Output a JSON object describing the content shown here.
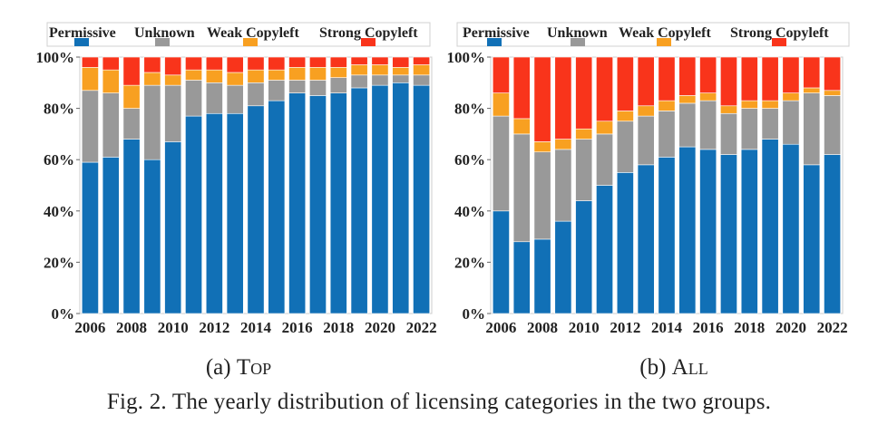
{
  "colors": {
    "Permissive": "#1170b6",
    "Unknown": "#999999",
    "Weak Copyleft": "#f8a021",
    "Strong Copyleft": "#f9341b"
  },
  "legend_labels": [
    "Permissive",
    "Unknown",
    "Weak Copyleft",
    "Strong Copyleft"
  ],
  "subcaptions": {
    "left": {
      "prefix": "(a)",
      "name": "Top"
    },
    "right": {
      "prefix": "(b)",
      "name": "All"
    }
  },
  "caption": "Fig. 2.  The yearly distribution of licensing categories in the two groups.",
  "chart_data": [
    {
      "type": "bar",
      "stacked": true,
      "title": "",
      "xlabel": "",
      "ylabel": "",
      "ylim": [
        0,
        100
      ],
      "yticks": [
        "0%",
        "20%",
        "40%",
        "60%",
        "80%",
        "100%"
      ],
      "xtick_labels": [
        "2006",
        "2008",
        "2010",
        "2012",
        "2014",
        "2016",
        "2018",
        "2020",
        "2022"
      ],
      "categories": [
        "2006",
        "2007",
        "2008",
        "2009",
        "2010",
        "2011",
        "2012",
        "2013",
        "2014",
        "2015",
        "2016",
        "2017",
        "2018",
        "2019",
        "2020",
        "2021",
        "2022"
      ],
      "series": [
        {
          "name": "Permissive",
          "values": [
            59,
            61,
            68,
            60,
            67,
            77,
            78,
            78,
            81,
            83,
            86,
            85,
            86,
            88,
            89,
            90,
            89
          ]
        },
        {
          "name": "Unknown",
          "values": [
            28,
            25,
            12,
            29,
            22,
            14,
            12,
            11,
            9,
            8,
            5,
            6,
            6,
            5,
            4,
            3,
            4
          ]
        },
        {
          "name": "Weak Copyleft",
          "values": [
            9,
            9,
            9,
            5,
            4,
            4,
            5,
            5,
            5,
            4,
            5,
            5,
            4,
            4,
            4,
            3,
            4
          ]
        },
        {
          "name": "Strong Copyleft",
          "values": [
            4,
            5,
            11,
            6,
            7,
            5,
            5,
            6,
            5,
            5,
            4,
            4,
            4,
            3,
            3,
            4,
            3
          ]
        }
      ]
    },
    {
      "type": "bar",
      "stacked": true,
      "title": "",
      "xlabel": "",
      "ylabel": "",
      "ylim": [
        0,
        100
      ],
      "yticks": [
        "0%",
        "20%",
        "40%",
        "60%",
        "80%",
        "100%"
      ],
      "xtick_labels": [
        "2006",
        "2008",
        "2010",
        "2012",
        "2014",
        "2016",
        "2018",
        "2020",
        "2022"
      ],
      "categories": [
        "2006",
        "2007",
        "2008",
        "2009",
        "2010",
        "2011",
        "2012",
        "2013",
        "2014",
        "2015",
        "2016",
        "2017",
        "2018",
        "2019",
        "2020",
        "2021",
        "2022"
      ],
      "series": [
        {
          "name": "Permissive",
          "values": [
            40,
            28,
            29,
            36,
            44,
            50,
            55,
            58,
            61,
            65,
            64,
            62,
            64,
            68,
            66,
            58,
            62
          ]
        },
        {
          "name": "Unknown",
          "values": [
            37,
            42,
            34,
            28,
            24,
            20,
            20,
            19,
            18,
            17,
            19,
            16,
            16,
            12,
            17,
            28,
            23
          ]
        },
        {
          "name": "Weak Copyleft",
          "values": [
            9,
            6,
            4,
            4,
            4,
            5,
            4,
            4,
            4,
            3,
            3,
            3,
            3,
            3,
            3,
            2,
            2
          ]
        },
        {
          "name": "Strong Copyleft",
          "values": [
            14,
            24,
            33,
            32,
            28,
            25,
            21,
            19,
            17,
            15,
            14,
            19,
            17,
            17,
            14,
            12,
            13
          ]
        }
      ]
    }
  ]
}
